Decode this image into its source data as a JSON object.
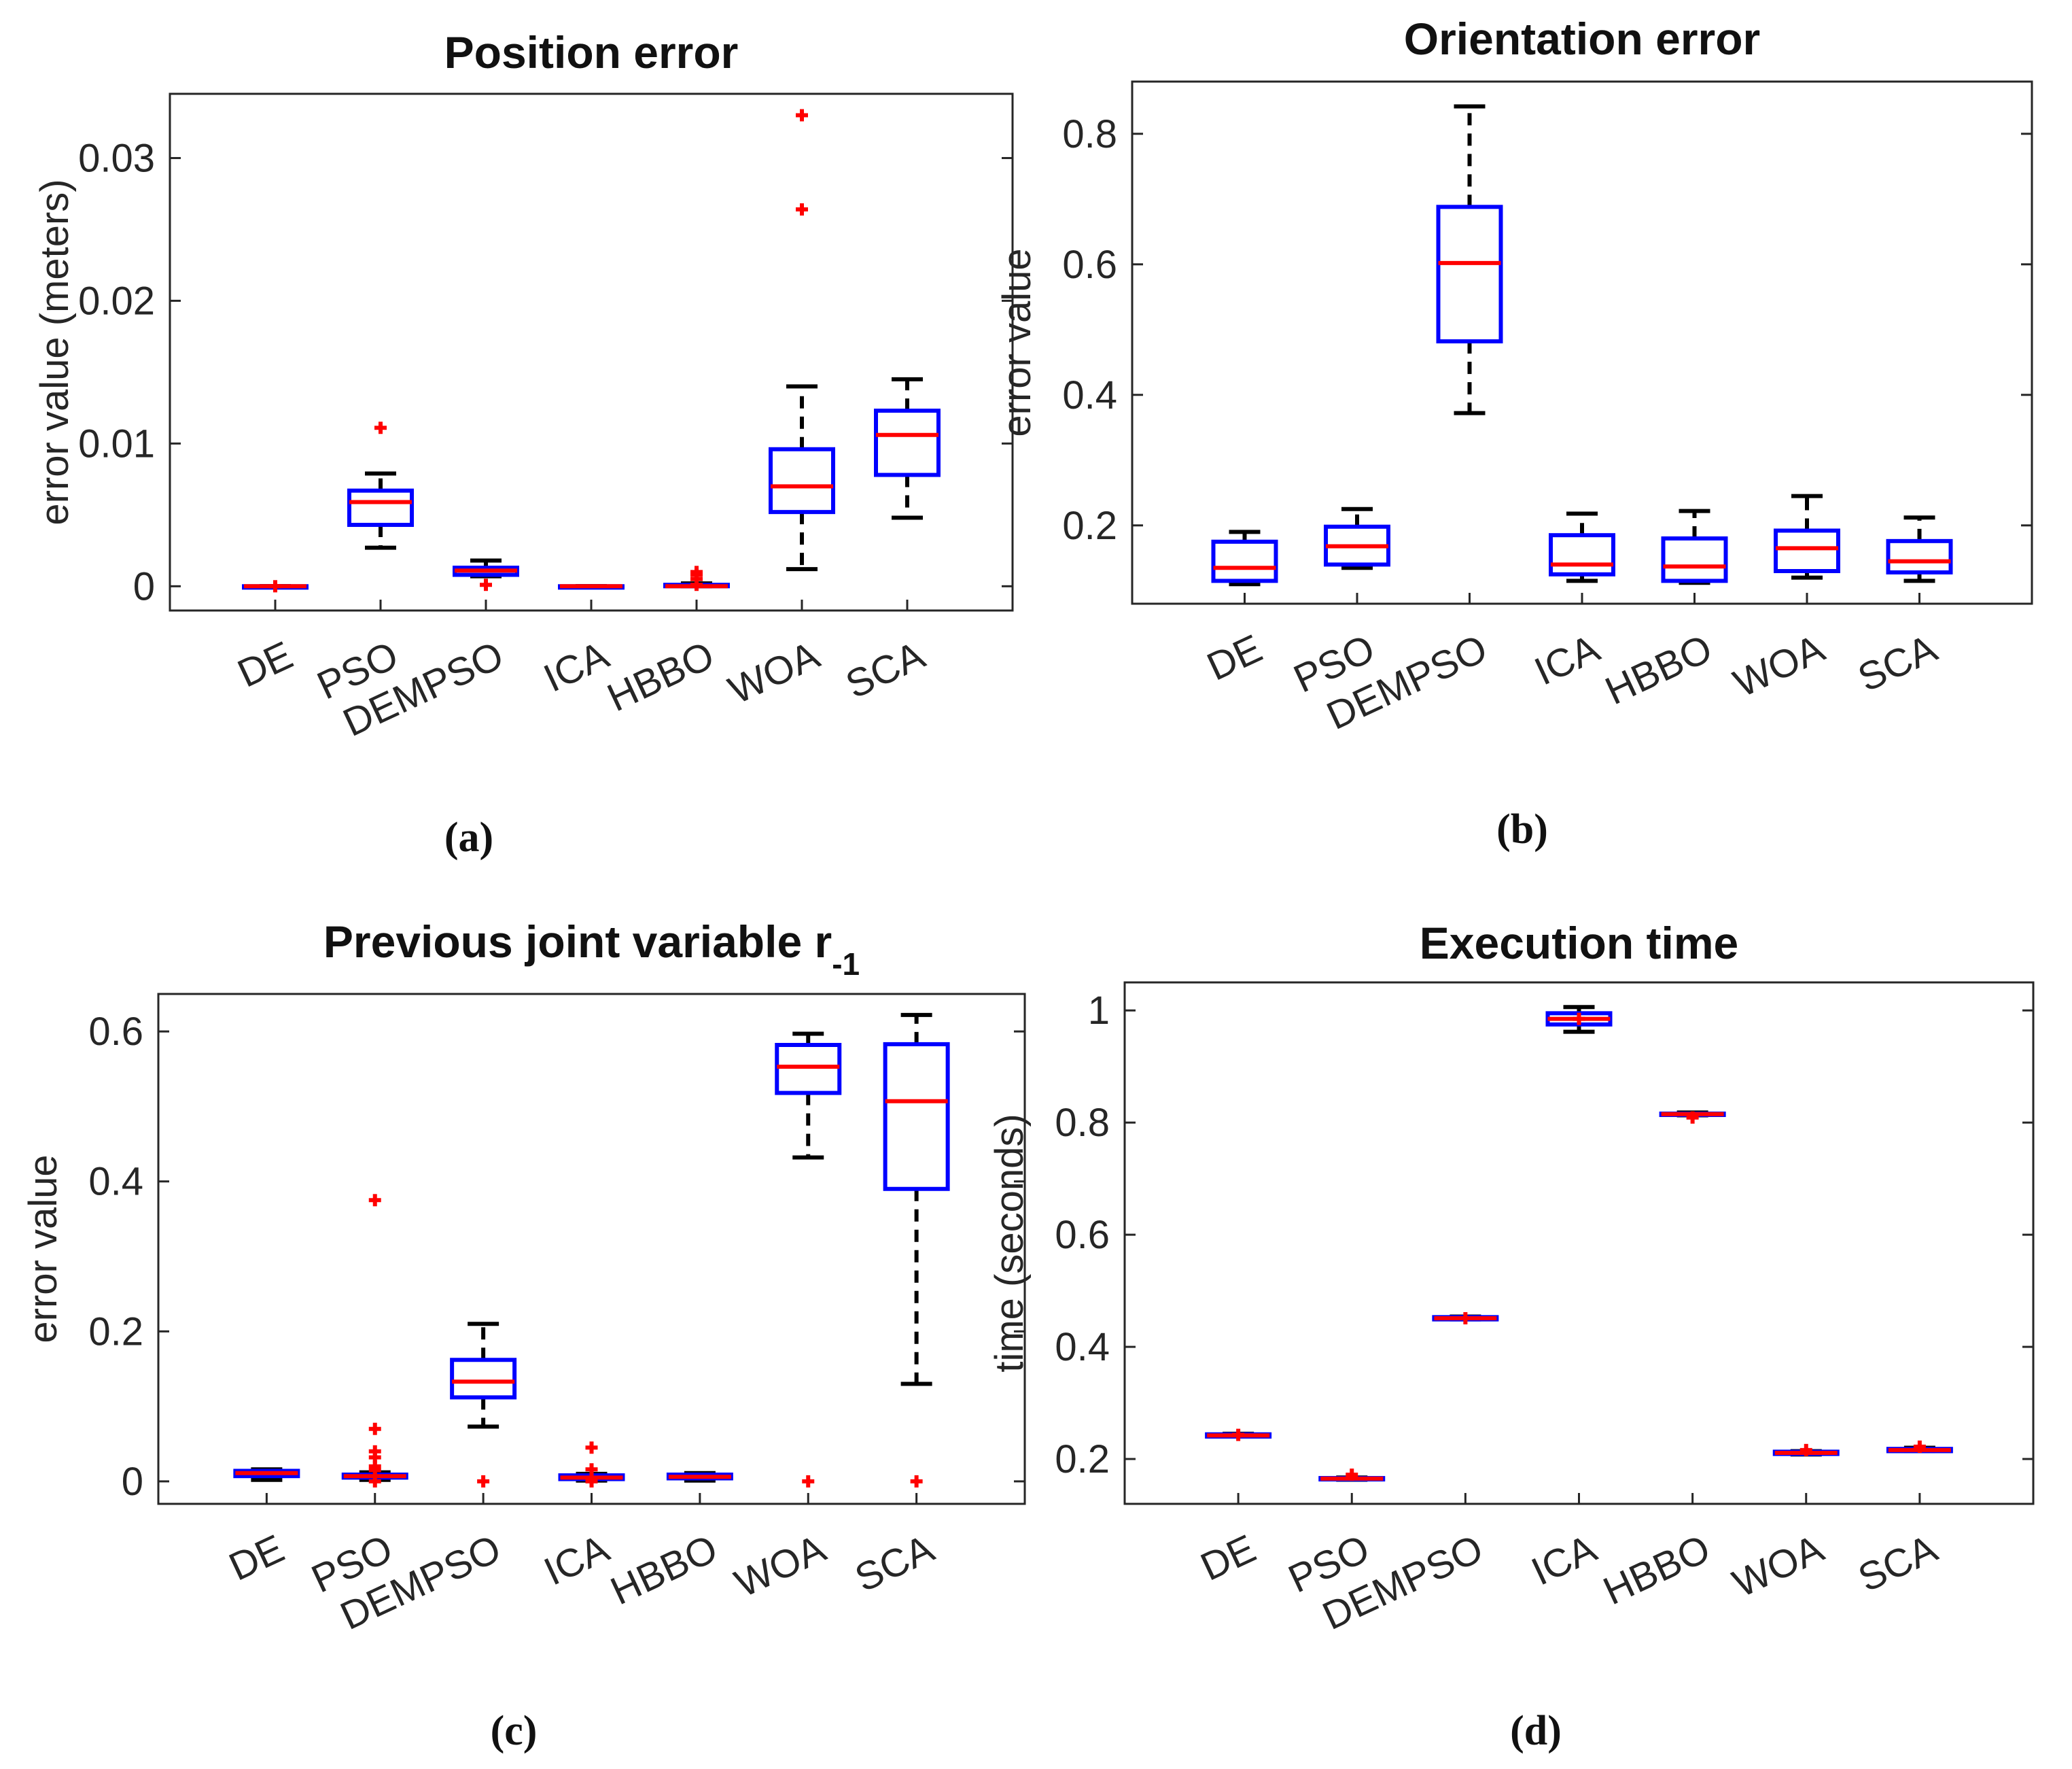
{
  "colors": {
    "box": "#0000ff",
    "median": "#ff0000",
    "outlier": "#ff0000",
    "whisker": "#000000",
    "axis": "#262626"
  },
  "chart_data": [
    {
      "panel": "(a)",
      "type": "boxplot",
      "title": "Position error",
      "title_sub": "",
      "ylabel": "error value (meters)",
      "ylim": [
        -0.0017,
        0.0345
      ],
      "yticks": [
        0,
        0.01,
        0.02,
        0.03
      ],
      "ytick_labels": [
        "0",
        "0.01",
        "0.02",
        "0.03"
      ],
      "categories": [
        "DE",
        "PSO",
        "DEMPSO",
        "ICA",
        "HBBO",
        "WOA",
        "SCA"
      ],
      "boxes": [
        {
          "min": 0,
          "q1": 0,
          "median": 0,
          "q3": 0,
          "max": 0,
          "outliers": [
            0
          ]
        },
        {
          "min": 0.0027,
          "q1": 0.0043,
          "median": 0.0059,
          "q3": 0.0067,
          "max": 0.0079,
          "outliers": [
            0.0111
          ]
        },
        {
          "min": 0.0007,
          "q1": 0.0008,
          "median": 0.0011,
          "q3": 0.0013,
          "max": 0.0018,
          "outliers": [
            0.0001
          ]
        },
        {
          "min": 0,
          "q1": 0,
          "median": 0,
          "q3": 0,
          "max": 0,
          "outliers": []
        },
        {
          "min": 0,
          "q1": 0,
          "median": 0,
          "q3": 0.0001,
          "max": 0.0002,
          "outliers": [
            0.0005,
            0.0008,
            0.001,
            0.0001
          ]
        },
        {
          "min": 0.0012,
          "q1": 0.0052,
          "median": 0.007,
          "q3": 0.0096,
          "max": 0.014,
          "outliers": [
            0.0264,
            0.033
          ]
        },
        {
          "min": 0.0048,
          "q1": 0.0078,
          "median": 0.0106,
          "q3": 0.0123,
          "max": 0.0145,
          "outliers": []
        }
      ]
    },
    {
      "panel": "(b)",
      "type": "boxplot",
      "title": "Orientation error",
      "title_sub": "",
      "ylabel": "error value",
      "ylim": [
        0.08,
        0.88
      ],
      "yticks": [
        0.2,
        0.4,
        0.6,
        0.8
      ],
      "ytick_labels": [
        "0.2",
        "0.4",
        "0.6",
        "0.8"
      ],
      "categories": [
        "DE",
        "PSO",
        "DEMPSO",
        "ICA",
        "HBBO",
        "WOA",
        "SCA"
      ],
      "boxes": [
        {
          "min": 0.11,
          "q1": 0.115,
          "median": 0.135,
          "q3": 0.175,
          "max": 0.19,
          "outliers": []
        },
        {
          "min": 0.135,
          "q1": 0.14,
          "median": 0.168,
          "q3": 0.198,
          "max": 0.225,
          "outliers": []
        },
        {
          "min": 0.372,
          "q1": 0.482,
          "median": 0.602,
          "q3": 0.688,
          "max": 0.842,
          "outliers": []
        },
        {
          "min": 0.115,
          "q1": 0.125,
          "median": 0.14,
          "q3": 0.185,
          "max": 0.218,
          "outliers": []
        },
        {
          "min": 0.112,
          "q1": 0.115,
          "median": 0.137,
          "q3": 0.18,
          "max": 0.222,
          "outliers": []
        },
        {
          "min": 0.12,
          "q1": 0.13,
          "median": 0.165,
          "q3": 0.192,
          "max": 0.245,
          "outliers": []
        },
        {
          "min": 0.115,
          "q1": 0.128,
          "median": 0.145,
          "q3": 0.176,
          "max": 0.212,
          "outliers": []
        }
      ]
    },
    {
      "panel": "(c)",
      "type": "boxplot",
      "title": "Previous joint variable r",
      "title_sub": "-1",
      "ylabel": "error value",
      "ylim": [
        -0.03,
        0.65
      ],
      "yticks": [
        0,
        0.2,
        0.4,
        0.6
      ],
      "ytick_labels": [
        "0",
        "0.2",
        "0.4",
        "0.6"
      ],
      "categories": [
        "DE",
        "PSO",
        "DEMPSO",
        "ICA",
        "HBBO",
        "WOA",
        "SCA"
      ],
      "boxes": [
        {
          "min": 0.002,
          "q1": 0.007,
          "median": 0.011,
          "q3": 0.014,
          "max": 0.016,
          "outliers": []
        },
        {
          "min": 0.002,
          "q1": 0.005,
          "median": 0.007,
          "q3": 0.009,
          "max": 0.012,
          "outliers": [
            0.375,
            0.07,
            0.04,
            0.032,
            0.02,
            0.015,
            0.0
          ]
        },
        {
          "min": 0.073,
          "q1": 0.112,
          "median": 0.133,
          "q3": 0.162,
          "max": 0.21,
          "outliers": [
            0.0
          ]
        },
        {
          "min": 0.001,
          "q1": 0.003,
          "median": 0.005,
          "q3": 0.008,
          "max": 0.01,
          "outliers": [
            0.045,
            0.016,
            0.0
          ]
        },
        {
          "min": 0.001,
          "q1": 0.004,
          "median": 0.006,
          "q3": 0.009,
          "max": 0.011,
          "outliers": []
        },
        {
          "min": 0.432,
          "q1": 0.518,
          "median": 0.553,
          "q3": 0.582,
          "max": 0.597,
          "outliers": [
            0.0
          ]
        },
        {
          "min": 0.13,
          "q1": 0.39,
          "median": 0.507,
          "q3": 0.583,
          "max": 0.622,
          "outliers": [
            0.0
          ]
        }
      ]
    },
    {
      "panel": "(d)",
      "type": "boxplot",
      "title": "Execution time",
      "title_sub": "",
      "ylabel": "time (seconds)",
      "ylim": [
        0.12,
        1.05
      ],
      "yticks": [
        0.2,
        0.4,
        0.6,
        0.8,
        1
      ],
      "ytick_labels": [
        "0.2",
        "0.4",
        "0.6",
        "0.8",
        "1"
      ],
      "categories": [
        "DE",
        "PSO",
        "DEMPSO",
        "ICA",
        "HBBO",
        "WOA",
        "SCA"
      ],
      "boxes": [
        {
          "min": 0.24,
          "q1": 0.24,
          "median": 0.242,
          "q3": 0.244,
          "max": 0.245,
          "outliers": [
            0.243
          ]
        },
        {
          "min": 0.163,
          "q1": 0.164,
          "median": 0.165,
          "q3": 0.166,
          "max": 0.167,
          "outliers": [
            0.172
          ]
        },
        {
          "min": 0.449,
          "q1": 0.449,
          "median": 0.451,
          "q3": 0.453,
          "max": 0.454,
          "outliers": [
            0.451
          ]
        },
        {
          "min": 0.962,
          "q1": 0.975,
          "median": 0.985,
          "q3": 0.995,
          "max": 1.006,
          "outliers": [
            0.985
          ]
        },
        {
          "min": 0.813,
          "q1": 0.814,
          "median": 0.815,
          "q3": 0.816,
          "max": 0.818,
          "outliers": [
            0.809
          ]
        },
        {
          "min": 0.208,
          "q1": 0.209,
          "median": 0.211,
          "q3": 0.213,
          "max": 0.214,
          "outliers": [
            0.216
          ]
        },
        {
          "min": 0.214,
          "q1": 0.214,
          "median": 0.216,
          "q3": 0.218,
          "max": 0.22,
          "outliers": [
            0.222
          ]
        }
      ]
    }
  ]
}
